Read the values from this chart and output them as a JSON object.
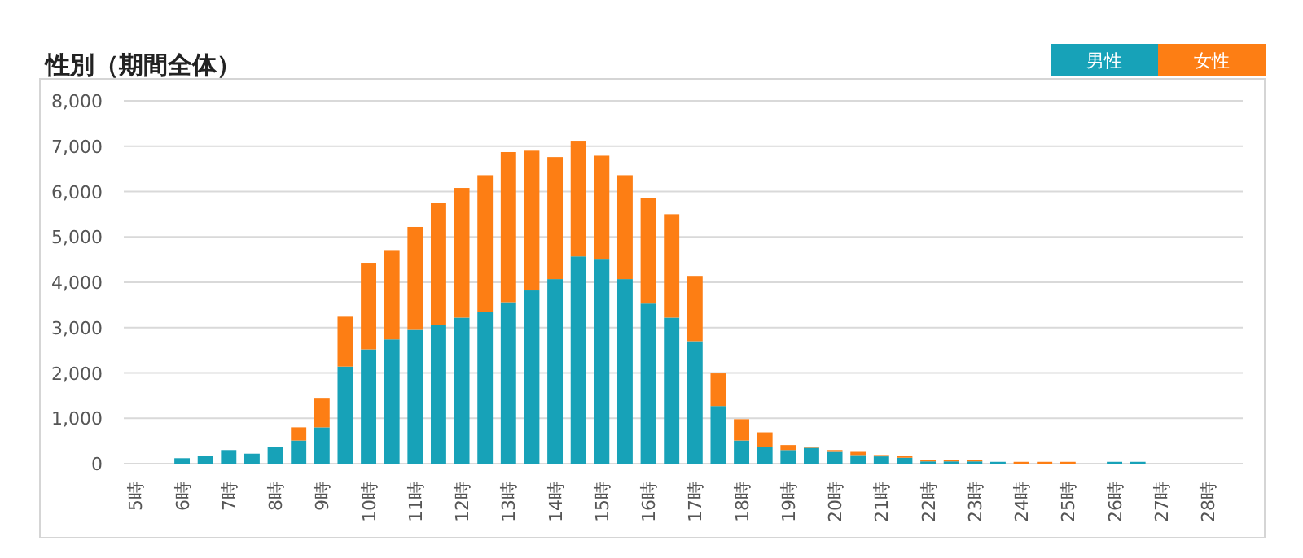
{
  "chart_data": {
    "type": "bar",
    "title": "性別（期間全体）",
    "stacked": true,
    "grid": "y",
    "legend": "top right",
    "categories": [
      "5時",
      null,
      "6時",
      null,
      "7時",
      null,
      "8時",
      null,
      "9時",
      null,
      "10時",
      null,
      "11時",
      null,
      "12時",
      null,
      "13時",
      null,
      "14時",
      null,
      "15時",
      null,
      "16時",
      null,
      "17時",
      null,
      "18時",
      null,
      "19時",
      null,
      "20時",
      null,
      "21時",
      null,
      "22時",
      null,
      "23時",
      null,
      "24時",
      null,
      "25時",
      null,
      "26時",
      null,
      "27時",
      null,
      "28時",
      null
    ],
    "series": [
      {
        "name": "男性",
        "color": "#17a2b8",
        "values": [
          0,
          0,
          120,
          170,
          300,
          220,
          370,
          510,
          800,
          2140,
          2520,
          2740,
          2950,
          3060,
          3220,
          3350,
          3560,
          3820,
          4070,
          4570,
          4500,
          4070,
          3530,
          3220,
          2700,
          1270,
          510,
          370,
          300,
          350,
          260,
          190,
          160,
          130,
          50,
          50,
          50,
          40,
          0,
          0,
          0,
          0,
          40,
          40,
          0,
          0,
          0,
          0
        ]
      },
      {
        "name": "女性",
        "color": "#fd7e14",
        "values": [
          0,
          0,
          0,
          0,
          0,
          0,
          0,
          290,
          650,
          1100,
          1910,
          1970,
          2270,
          2690,
          2860,
          3010,
          3310,
          3080,
          2690,
          2550,
          2290,
          2290,
          2330,
          2280,
          1440,
          720,
          470,
          320,
          110,
          20,
          40,
          70,
          30,
          40,
          30,
          30,
          30,
          0,
          40,
          40,
          40,
          0,
          0,
          0,
          0,
          0,
          0,
          0
        ]
      }
    ],
    "ylim": [
      0,
      8000
    ],
    "yticks": [
      0,
      {
        "value": 1000,
        "label": "1,000"
      },
      {
        "value": 2000,
        "label": "2,000"
      },
      {
        "value": 3000,
        "label": "3,000"
      },
      {
        "value": 4000,
        "label": "4,000"
      },
      {
        "value": 5000,
        "label": "5,000"
      },
      {
        "value": 6000,
        "label": "6,000"
      },
      {
        "value": 7000,
        "label": "7,000"
      },
      {
        "value": 8000,
        "label": "8,000"
      }
    ]
  }
}
